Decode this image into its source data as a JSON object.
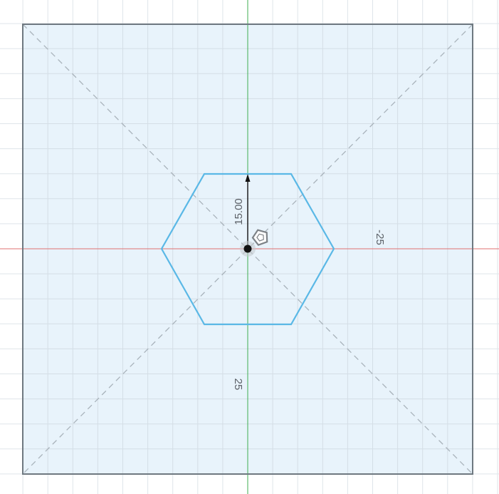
{
  "sketch": {
    "dimension_hex_radius": "15.00",
    "dimension_right": "-25",
    "dimension_bottom": "25"
  },
  "colors": {
    "canvas_background": "#ffffff",
    "sheet_fill": "#e8f3fb",
    "sheet_border": "#6e7880",
    "grid_line": "#d9e1e7",
    "x_axis": "#e06060",
    "y_axis": "#3fae52",
    "hexagon": "#5ab8e6",
    "construction_line": "#a9b3bb",
    "dimension_line": "#111111"
  },
  "icons": {
    "hex_badge": "polygon-cursor-icon",
    "center_point": "sketch-point-icon"
  }
}
